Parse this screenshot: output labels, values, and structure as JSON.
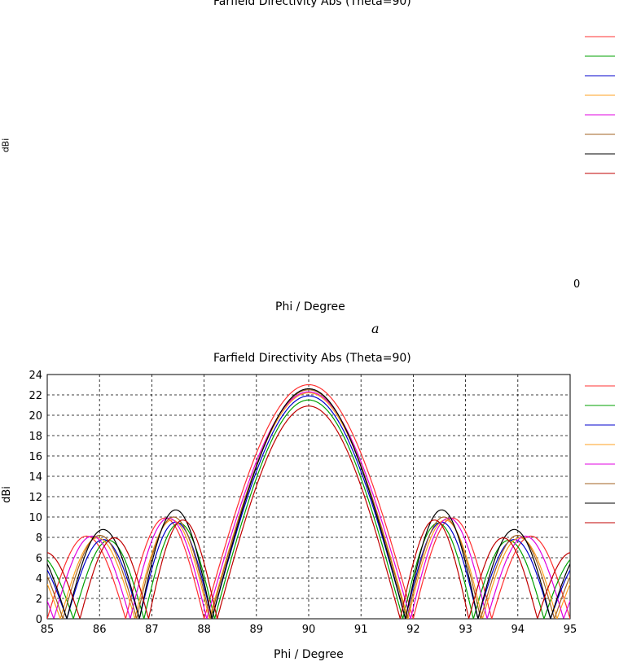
{
  "panel_a": {
    "title": "Farfield Directivity Abs (Theta=90)",
    "ylabel": "dBi",
    "xlabel": "Phi / Degree",
    "stray_zero": "0",
    "caption": "a"
  },
  "chart_data": {
    "type": "line",
    "title": "Farfield Directivity Abs (Theta=90)",
    "xlabel": "Phi / Degree",
    "ylabel": "dBi",
    "xlim": [
      85,
      95
    ],
    "ylim": [
      0,
      24
    ],
    "xticks": [
      85,
      86,
      87,
      88,
      89,
      90,
      91,
      92,
      93,
      94,
      95
    ],
    "yticks": [
      0,
      2,
      4,
      6,
      8,
      10,
      12,
      14,
      16,
      18,
      20,
      22,
      24
    ],
    "grid": true,
    "legend_position": "right",
    "series": [
      {
        "color": "#ff3030",
        "peak": 23.0,
        "main_half_width": 2.0,
        "side_peak_x": 86.9,
        "side_peak_y": 9.9
      },
      {
        "color": "#00a000",
        "peak": 21.5,
        "main_half_width": 1.8,
        "side_peak_x": 86.7,
        "side_peak_y": 9.4
      },
      {
        "color": "#0000cc",
        "peak": 21.9,
        "main_half_width": 1.85,
        "side_peak_x": 86.9,
        "side_peak_y": 9.5
      },
      {
        "color": "#ffa020",
        "peak": 22.2,
        "main_half_width": 1.9,
        "side_peak_x": 87.0,
        "side_peak_y": 9.7
      },
      {
        "color": "#e000e0",
        "peak": 22.3,
        "main_half_width": 1.95,
        "side_peak_x": 87.1,
        "side_peak_y": 9.9
      },
      {
        "color": "#a06020",
        "peak": 22.5,
        "main_half_width": 1.88,
        "side_peak_x": 87.0,
        "side_peak_y": 10.0
      },
      {
        "color": "#000000",
        "peak": 22.6,
        "main_half_width": 1.85,
        "side_peak_x": 87.3,
        "side_peak_y": 10.7
      },
      {
        "color": "#c00000",
        "peak": 20.9,
        "main_half_width": 1.75,
        "side_peak_x": 86.5,
        "side_peak_y": 9.7
      }
    ]
  },
  "panel_b": {
    "legend_entries": [
      {
        "color": "#ff3030"
      },
      {
        "color": "#00a000"
      },
      {
        "color": "#0000cc"
      },
      {
        "color": "#ffa020"
      },
      {
        "color": "#e000e0"
      },
      {
        "color": "#a06020"
      },
      {
        "color": "#000000"
      },
      {
        "color": "#c00000"
      }
    ]
  }
}
